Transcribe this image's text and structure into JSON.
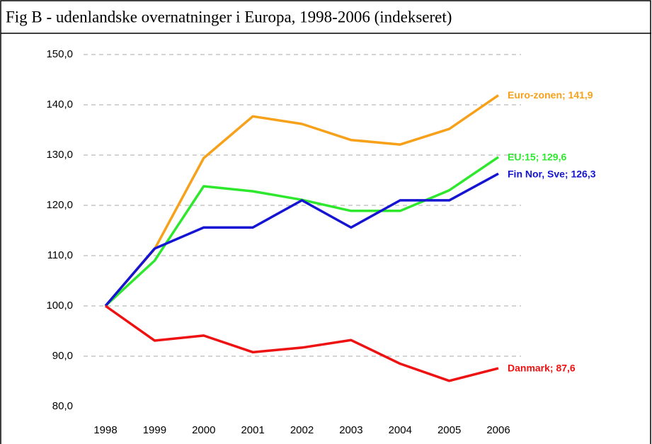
{
  "chart_data": {
    "type": "line",
    "title": "Fig B - udenlandske overnatninger i Europa, 1998-2006 (indekseret)",
    "categories": [
      "1998",
      "1999",
      "2000",
      "2001",
      "2002",
      "2003",
      "2004",
      "2005",
      "2006"
    ],
    "series": [
      {
        "label": "Euro-zonen; 141,9",
        "color": "#f7a11a",
        "values": [
          100,
          111.3,
          129.4,
          137.7,
          136.2,
          133.0,
          132.1,
          135.2,
          141.9
        ]
      },
      {
        "label": "EU:15; 129,6",
        "color": "#2ee82e",
        "values": [
          100,
          109.0,
          123.8,
          122.8,
          121.1,
          118.9,
          118.9,
          123.0,
          129.6
        ]
      },
      {
        "label": "Fin Nor, Sve; 126,3",
        "color": "#1414d2",
        "values": [
          100,
          111.4,
          115.6,
          115.6,
          121.0,
          115.6,
          121.0,
          121.0,
          126.3
        ]
      },
      {
        "label": "Danmark; 87,6",
        "color": "#ee1111",
        "values": [
          100,
          93.1,
          94.1,
          90.8,
          91.7,
          93.2,
          88.5,
          85.1,
          87.6
        ]
      }
    ],
    "ylim": [
      80,
      150
    ],
    "yticks": [
      {
        "value": 80,
        "label": "80,0"
      },
      {
        "value": 90,
        "label": "90,0"
      },
      {
        "value": 100,
        "label": "100,0"
      },
      {
        "value": 110,
        "label": "110,0"
      },
      {
        "value": 120,
        "label": "120,0"
      },
      {
        "value": 130,
        "label": "130,0"
      },
      {
        "value": 140,
        "label": "140,0"
      },
      {
        "value": 150,
        "label": "150,0"
      }
    ],
    "grid": true
  }
}
